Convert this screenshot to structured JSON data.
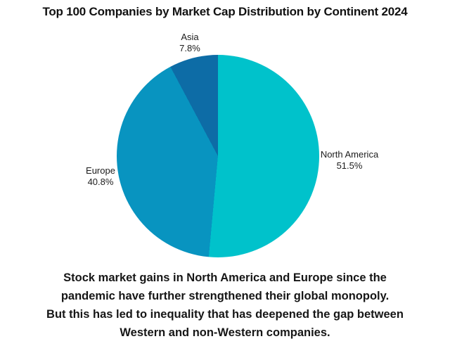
{
  "title": "Top 100 Companies by Market Cap Distribution by Continent 2024",
  "chart_data": {
    "type": "pie",
    "title": "Top 100 Companies by Market Cap Distribution by Continent 2024",
    "start_angle_deg": 0,
    "direction": "clockwise",
    "legend_position": "outside-labels",
    "slices": [
      {
        "label": "North America",
        "value": 51.5,
        "pct_label": "51.5%",
        "color": "#00C2CB"
      },
      {
        "label": "Europe",
        "value": 40.8,
        "pct_label": "40.8%",
        "color": "#0894C0"
      },
      {
        "label": "Asia",
        "value": 7.8,
        "pct_label": "7.8%",
        "color": "#0D6CA6"
      }
    ]
  },
  "caption": {
    "lines": [
      "Stock market gains in North America and Europe since the",
      "pandemic have further strengthened their global monopoly.",
      "But this has led to inequality that has deepened the gap between",
      "Western and non-Western companies."
    ]
  }
}
